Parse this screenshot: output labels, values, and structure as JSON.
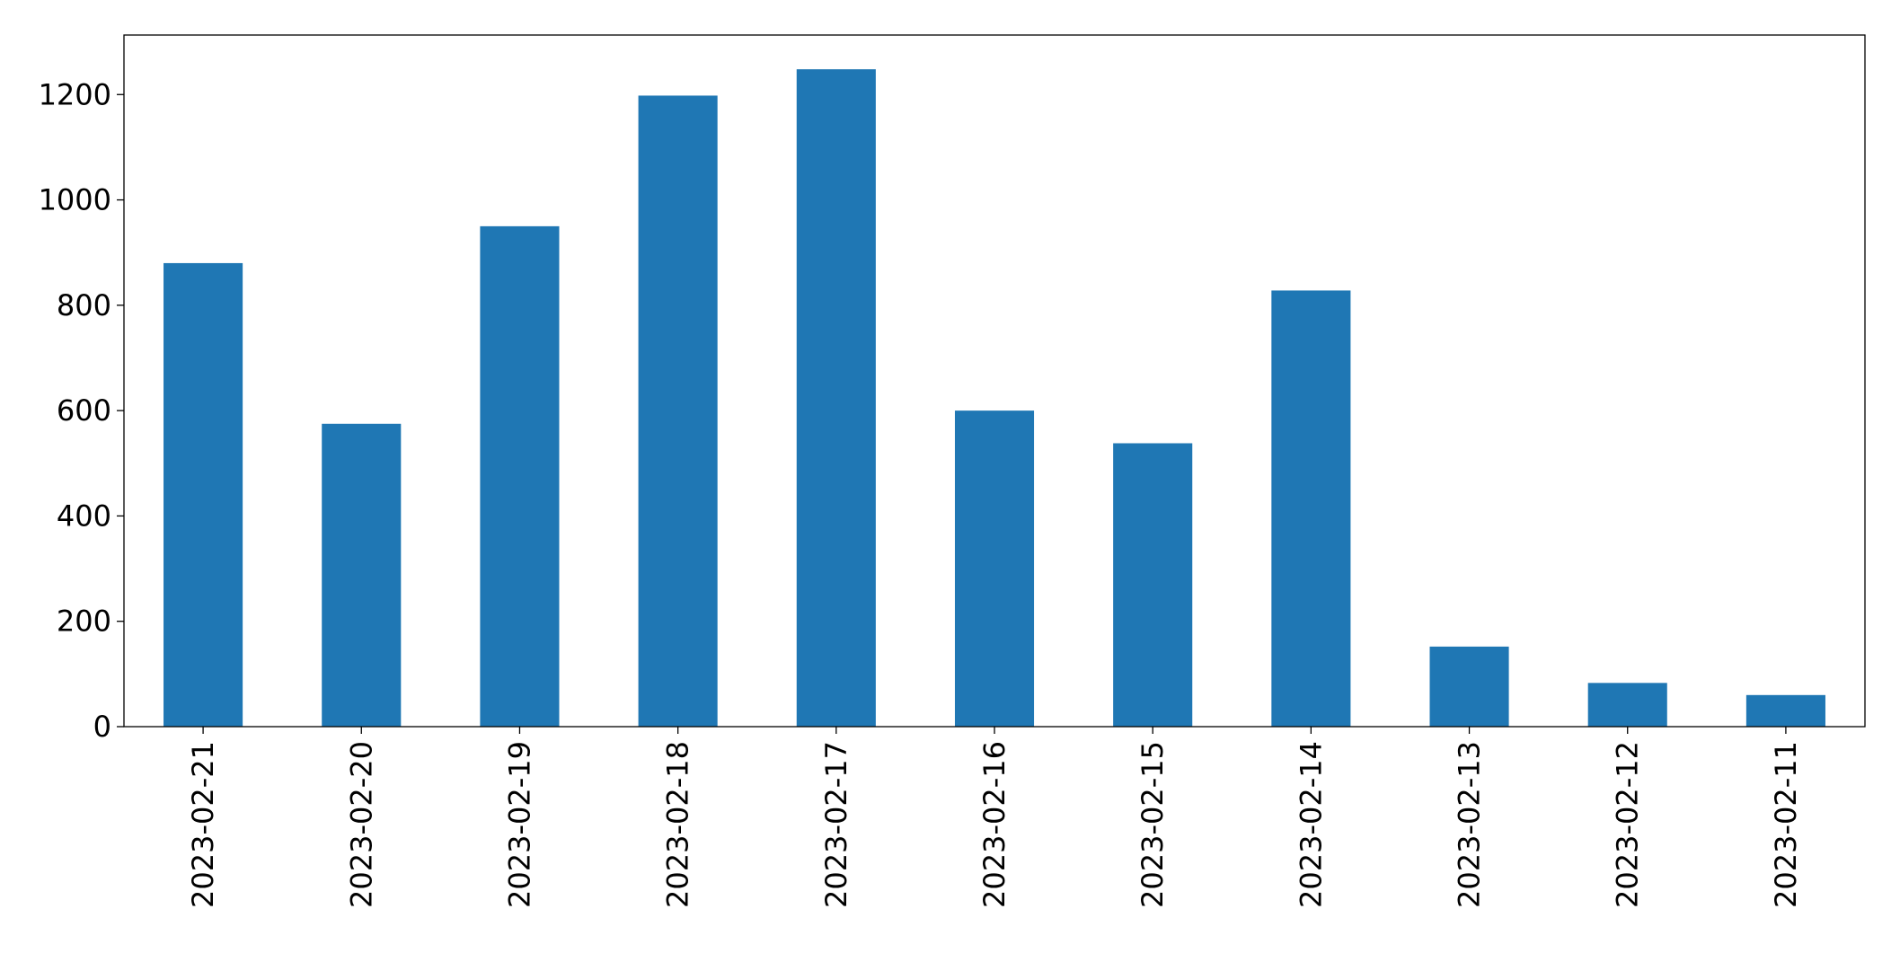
{
  "chart_data": {
    "type": "bar",
    "categories": [
      "2023-02-21",
      "2023-02-20",
      "2023-02-19",
      "2023-02-18",
      "2023-02-17",
      "2023-02-16",
      "2023-02-15",
      "2023-02-14",
      "2023-02-13",
      "2023-02-12",
      "2023-02-11"
    ],
    "values": [
      880,
      575,
      950,
      1198,
      1248,
      600,
      538,
      828,
      152,
      83,
      60
    ],
    "color": "#1f77b4",
    "ylim": [
      0,
      1313
    ],
    "yticks": [
      0,
      200,
      400,
      600,
      800,
      1000,
      1200
    ],
    "grid": false
  }
}
